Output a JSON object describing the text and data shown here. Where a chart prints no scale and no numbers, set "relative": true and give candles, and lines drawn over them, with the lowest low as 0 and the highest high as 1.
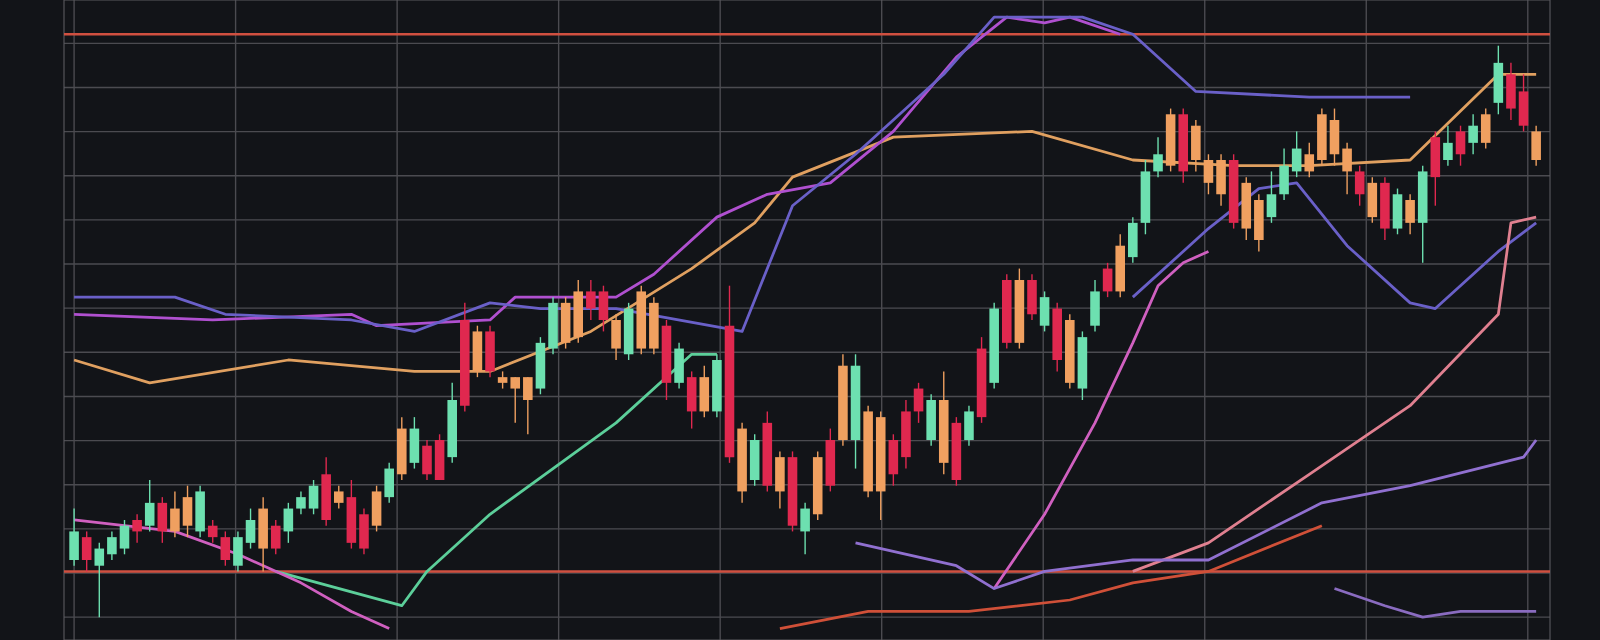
{
  "chart_data": {
    "type": "candlestick",
    "relative": true,
    "grid": true,
    "categories": [
      null,
      null,
      null,
      null,
      null,
      null,
      null,
      null,
      null,
      null,
      null,
      null,
      null,
      null,
      null,
      null,
      null,
      null,
      null,
      null,
      null,
      null,
      null,
      null,
      null,
      null,
      null,
      null,
      null,
      null,
      null,
      null,
      null,
      null,
      null,
      null,
      null,
      null,
      null,
      null,
      null,
      null,
      null,
      null,
      null,
      null,
      null,
      null,
      null,
      null,
      null,
      null,
      null,
      null,
      null,
      null,
      null,
      null,
      null,
      null,
      null,
      null,
      null,
      null,
      null,
      null,
      null,
      null,
      null,
      null,
      null,
      null,
      null,
      null,
      null,
      null,
      null,
      null,
      null,
      null,
      null,
      null,
      null,
      null,
      null,
      null,
      null,
      null,
      null,
      null,
      null,
      null,
      null,
      null,
      null,
      null,
      null,
      null,
      null,
      null,
      null,
      null,
      null,
      null,
      null,
      null,
      null,
      null,
      null,
      null,
      null,
      null,
      null,
      null,
      null,
      null,
      null
    ],
    "ohlc": [
      [
        0.1,
        0.19,
        0.09,
        0.15
      ],
      [
        0.14,
        0.15,
        0.08,
        0.1
      ],
      [
        0.09,
        0.13,
        0.0,
        0.12
      ],
      [
        0.11,
        0.15,
        0.1,
        0.14
      ],
      [
        0.12,
        0.17,
        0.11,
        0.16
      ],
      [
        0.17,
        0.18,
        0.13,
        0.15
      ],
      [
        0.16,
        0.24,
        0.15,
        0.2
      ],
      [
        0.2,
        0.21,
        0.13,
        0.15
      ],
      [
        0.15,
        0.22,
        0.14,
        0.19
      ],
      [
        0.16,
        0.23,
        0.14,
        0.21
      ],
      [
        0.15,
        0.23,
        0.14,
        0.22
      ],
      [
        0.16,
        0.17,
        0.13,
        0.14
      ],
      [
        0.14,
        0.15,
        0.09,
        0.1
      ],
      [
        0.09,
        0.15,
        0.08,
        0.14
      ],
      [
        0.13,
        0.19,
        0.12,
        0.17
      ],
      [
        0.12,
        0.21,
        0.08,
        0.19
      ],
      [
        0.16,
        0.17,
        0.11,
        0.12
      ],
      [
        0.15,
        0.2,
        0.13,
        0.19
      ],
      [
        0.19,
        0.22,
        0.18,
        0.21
      ],
      [
        0.19,
        0.24,
        0.18,
        0.23
      ],
      [
        0.25,
        0.28,
        0.16,
        0.17
      ],
      [
        0.2,
        0.23,
        0.19,
        0.22
      ],
      [
        0.21,
        0.24,
        0.12,
        0.13
      ],
      [
        0.18,
        0.19,
        0.11,
        0.12
      ],
      [
        0.16,
        0.23,
        0.15,
        0.22
      ],
      [
        0.21,
        0.27,
        0.2,
        0.26
      ],
      [
        0.25,
        0.35,
        0.24,
        0.33
      ],
      [
        0.27,
        0.35,
        0.26,
        0.33
      ],
      [
        0.3,
        0.31,
        0.24,
        0.25
      ],
      [
        0.31,
        0.32,
        0.24,
        0.24
      ],
      [
        0.28,
        0.41,
        0.27,
        0.38
      ],
      [
        0.52,
        0.55,
        0.36,
        0.37
      ],
      [
        0.43,
        0.51,
        0.42,
        0.5
      ],
      [
        0.5,
        0.51,
        0.42,
        0.43
      ],
      [
        0.41,
        0.43,
        0.4,
        0.42
      ],
      [
        0.4,
        0.42,
        0.34,
        0.42
      ],
      [
        0.38,
        0.42,
        0.32,
        0.42
      ],
      [
        0.4,
        0.49,
        0.39,
        0.48
      ],
      [
        0.47,
        0.56,
        0.46,
        0.55
      ],
      [
        0.48,
        0.56,
        0.47,
        0.55
      ],
      [
        0.49,
        0.59,
        0.48,
        0.57
      ],
      [
        0.57,
        0.59,
        0.52,
        0.54
      ],
      [
        0.57,
        0.58,
        0.5,
        0.52
      ],
      [
        0.47,
        0.53,
        0.45,
        0.52
      ],
      [
        0.46,
        0.55,
        0.45,
        0.54
      ],
      [
        0.47,
        0.58,
        0.46,
        0.57
      ],
      [
        0.47,
        0.56,
        0.46,
        0.55
      ],
      [
        0.51,
        0.52,
        0.38,
        0.41
      ],
      [
        0.41,
        0.48,
        0.4,
        0.47
      ],
      [
        0.42,
        0.43,
        0.33,
        0.36
      ],
      [
        0.36,
        0.44,
        0.35,
        0.42
      ],
      [
        0.36,
        0.46,
        0.35,
        0.45
      ],
      [
        0.51,
        0.58,
        0.27,
        0.28
      ],
      [
        0.22,
        0.34,
        0.2,
        0.33
      ],
      [
        0.24,
        0.32,
        0.23,
        0.31
      ],
      [
        0.34,
        0.36,
        0.22,
        0.23
      ],
      [
        0.22,
        0.29,
        0.19,
        0.28
      ],
      [
        0.28,
        0.29,
        0.15,
        0.16
      ],
      [
        0.15,
        0.2,
        0.11,
        0.19
      ],
      [
        0.18,
        0.29,
        0.17,
        0.28
      ],
      [
        0.31,
        0.33,
        0.22,
        0.23
      ],
      [
        0.31,
        0.46,
        0.3,
        0.44
      ],
      [
        0.31,
        0.46,
        0.26,
        0.44
      ],
      [
        0.36,
        0.37,
        0.21,
        0.22
      ],
      [
        0.35,
        0.36,
        0.17,
        0.22
      ],
      [
        0.31,
        0.32,
        0.23,
        0.25
      ],
      [
        0.36,
        0.38,
        0.26,
        0.28
      ],
      [
        0.4,
        0.41,
        0.34,
        0.36
      ],
      [
        0.31,
        0.39,
        0.3,
        0.38
      ],
      [
        0.38,
        0.43,
        0.25,
        0.27
      ],
      [
        0.34,
        0.35,
        0.23,
        0.24
      ],
      [
        0.31,
        0.37,
        0.3,
        0.36
      ],
      [
        0.47,
        0.49,
        0.34,
        0.35
      ],
      [
        0.41,
        0.55,
        0.4,
        0.54
      ],
      [
        0.59,
        0.6,
        0.47,
        0.48
      ],
      [
        0.48,
        0.61,
        0.47,
        0.59
      ],
      [
        0.59,
        0.6,
        0.52,
        0.53
      ],
      [
        0.51,
        0.57,
        0.5,
        0.56
      ],
      [
        0.54,
        0.55,
        0.43,
        0.45
      ],
      [
        0.41,
        0.53,
        0.4,
        0.52
      ],
      [
        0.4,
        0.5,
        0.38,
        0.49
      ],
      [
        0.51,
        0.59,
        0.5,
        0.57
      ],
      [
        0.61,
        0.62,
        0.56,
        0.57
      ],
      [
        0.57,
        0.67,
        0.56,
        0.65
      ],
      [
        0.63,
        0.7,
        0.62,
        0.69
      ],
      [
        0.69,
        0.8,
        0.67,
        0.78
      ],
      [
        0.78,
        0.84,
        0.77,
        0.81
      ],
      [
        0.79,
        0.89,
        0.78,
        0.88
      ],
      [
        0.88,
        0.89,
        0.76,
        0.78
      ],
      [
        0.8,
        0.87,
        0.78,
        0.86
      ],
      [
        0.8,
        0.81,
        0.74,
        0.76
      ],
      [
        0.8,
        0.81,
        0.72,
        0.74
      ],
      [
        0.8,
        0.81,
        0.68,
        0.69
      ],
      [
        0.76,
        0.77,
        0.66,
        0.68
      ],
      [
        0.73,
        0.74,
        0.64,
        0.66
      ],
      [
        0.7,
        0.78,
        0.69,
        0.74
      ],
      [
        0.74,
        0.82,
        0.73,
        0.79
      ],
      [
        0.78,
        0.85,
        0.77,
        0.82
      ],
      [
        0.81,
        0.83,
        0.77,
        0.78
      ],
      [
        0.8,
        0.89,
        0.79,
        0.88
      ],
      [
        0.81,
        0.89,
        0.79,
        0.87
      ],
      [
        0.82,
        0.83,
        0.74,
        0.78
      ],
      [
        0.78,
        0.79,
        0.72,
        0.74
      ],
      [
        0.76,
        0.77,
        0.69,
        0.7
      ],
      [
        0.76,
        0.77,
        0.66,
        0.68
      ],
      [
        0.68,
        0.75,
        0.67,
        0.74
      ],
      [
        0.73,
        0.74,
        0.67,
        0.69
      ],
      [
        0.69,
        0.79,
        0.62,
        0.78
      ],
      [
        0.84,
        0.85,
        0.72,
        0.77
      ],
      [
        0.8,
        0.86,
        0.79,
        0.83
      ],
      [
        0.85,
        0.86,
        0.79,
        0.81
      ],
      [
        0.83,
        0.88,
        0.81,
        0.86
      ],
      [
        0.83,
        0.89,
        0.82,
        0.88
      ],
      [
        0.9,
        1.0,
        0.88,
        0.97
      ],
      [
        0.95,
        0.97,
        0.87,
        0.89
      ],
      [
        0.92,
        0.95,
        0.85,
        0.86
      ],
      [
        0.85,
        0.86,
        0.79,
        0.8
      ]
    ],
    "colors": [
      "#6de0b0",
      "#e0284f",
      "#6de0b0",
      "#6de0b0",
      "#6de0b0",
      "#e0284f",
      "#6de0b0",
      "#e0284f",
      "#f0a060",
      "#f0a060",
      "#6de0b0",
      "#e0284f",
      "#e0284f",
      "#6de0b0",
      "#6de0b0",
      "#f0a060",
      "#e0284f",
      "#6de0b0",
      "#6de0b0",
      "#6de0b0",
      "#e0284f",
      "#f0a060",
      "#e0284f",
      "#e0284f",
      "#f0a060",
      "#6de0b0",
      "#f0a060",
      "#6de0b0",
      "#e0284f",
      "#e0284f",
      "#6de0b0",
      "#e0284f",
      "#f0a060",
      "#e0284f",
      "#f0a060",
      "#f0a060",
      "#f0a060",
      "#6de0b0",
      "#6de0b0",
      "#f0a060",
      "#f0a060",
      "#e0284f",
      "#e0284f",
      "#f0a060",
      "#6de0b0",
      "#f0a060",
      "#f0a060",
      "#e0284f",
      "#6de0b0",
      "#e0284f",
      "#f0a060",
      "#6de0b0",
      "#e0284f",
      "#f0a060",
      "#6de0b0",
      "#e0284f",
      "#f0a060",
      "#e0284f",
      "#6de0b0",
      "#f0a060",
      "#e0284f",
      "#f0a060",
      "#6de0b0",
      "#f0a060",
      "#f0a060",
      "#e0284f",
      "#e0284f",
      "#e0284f",
      "#6de0b0",
      "#f0a060",
      "#e0284f",
      "#6de0b0",
      "#e0284f",
      "#6de0b0",
      "#e0284f",
      "#f0a060",
      "#e0284f",
      "#6de0b0",
      "#e0284f",
      "#f0a060",
      "#6de0b0",
      "#6de0b0",
      "#e0284f",
      "#f0a060",
      "#6de0b0",
      "#6de0b0",
      "#6de0b0",
      "#f0a060",
      "#e0284f",
      "#f0a060",
      "#f0a060",
      "#f0a060",
      "#e0284f",
      "#f0a060",
      "#f0a060",
      "#6de0b0",
      "#6de0b0",
      "#6de0b0",
      "#f0a060",
      "#f0a060",
      "#f0a060",
      "#f0a060",
      "#e0284f",
      "#f0a060",
      "#e0284f",
      "#6de0b0",
      "#f0a060",
      "#6de0b0",
      "#e0284f",
      "#6de0b0",
      "#e0284f",
      "#6de0b0",
      "#f0a060",
      "#6de0b0",
      "#e0284f",
      "#e0284f",
      "#f0a060"
    ],
    "series": [
      {
        "type": "line",
        "color": "#e0a060",
        "values": [
          0.45,
          null,
          null,
          null,
          null,
          null,
          0.41,
          null,
          null,
          null,
          null,
          null,
          null,
          null,
          null,
          null,
          null,
          0.45,
          null,
          null,
          null,
          null,
          null,
          null,
          null,
          null,
          null,
          0.43,
          null,
          null,
          null,
          null,
          null,
          0.43,
          null,
          null,
          null,
          null,
          null,
          null,
          null,
          0.5,
          null,
          null,
          null,
          null,
          null,
          null,
          null,
          0.61,
          null,
          null,
          null,
          null,
          0.69,
          null,
          null,
          0.77,
          null,
          null,
          null,
          null,
          null,
          null,
          null,
          0.84,
          null,
          null,
          null,
          null,
          null,
          null,
          null,
          null,
          null,
          null,
          0.85,
          null,
          null,
          null,
          null,
          null,
          null,
          null,
          0.8,
          null,
          null,
          null,
          null,
          null,
          null,
          null,
          0.79,
          null,
          null,
          null,
          null,
          null,
          0.79,
          null,
          null,
          null,
          null,
          null,
          null,
          null,
          0.8,
          null,
          null,
          null,
          null,
          null,
          null,
          0.95,
          null,
          null,
          0.95
        ]
      },
      {
        "type": "line",
        "color": "#b050d0",
        "values": [
          0.53,
          null,
          null,
          null,
          null,
          null,
          null,
          null,
          null,
          null,
          null,
          0.52,
          null,
          null,
          null,
          null,
          null,
          null,
          null,
          null,
          null,
          null,
          0.53,
          null,
          0.51,
          null,
          null,
          null,
          null,
          null,
          null,
          null,
          null,
          0.52,
          null,
          0.56,
          null,
          null,
          null,
          null,
          null,
          null,
          null,
          0.56,
          null,
          null,
          0.6,
          null,
          null,
          null,
          null,
          0.7,
          null,
          null,
          null,
          0.74,
          null,
          null,
          null,
          null,
          0.76,
          null,
          null,
          null,
          null,
          0.85,
          null,
          null,
          null,
          null,
          0.98,
          null,
          null,
          null,
          1.05,
          null,
          null,
          1.04,
          null,
          1.05,
          null,
          null,
          null,
          1.02,
          null,
          null,
          null,
          null,
          null,
          null,
          null,
          null,
          null,
          null,
          null,
          null,
          null,
          null,
          null,
          null,
          null,
          null,
          null,
          null,
          null,
          null,
          null,
          null,
          null,
          null,
          null,
          null,
          null,
          null,
          null,
          null,
          null
        ]
      },
      {
        "type": "line",
        "color": "#6a60c8",
        "values": [
          0.56,
          null,
          null,
          null,
          null,
          null,
          null,
          null,
          0.56,
          null,
          null,
          null,
          0.53,
          null,
          null,
          null,
          null,
          null,
          null,
          null,
          null,
          null,
          0.52,
          null,
          null,
          null,
          null,
          0.5,
          null,
          null,
          null,
          null,
          null,
          0.55,
          null,
          null,
          null,
          0.54,
          null,
          null,
          null,
          null,
          null,
          0.54,
          null,
          null,
          null,
          null,
          null,
          null,
          null,
          null,
          null,
          0.5,
          null,
          null,
          null,
          0.72,
          null,
          null,
          null,
          null,
          0.81,
          null,
          null,
          null,
          null,
          null,
          null,
          0.95,
          null,
          null,
          null,
          1.05,
          null,
          null,
          null,
          1.05,
          null,
          null,
          1.05,
          null,
          null,
          null,
          1.02,
          null,
          null,
          null,
          null,
          0.92,
          null,
          null,
          null,
          null,
          null,
          null,
          null,
          null,
          0.91,
          null,
          null,
          null,
          null,
          null,
          null,
          null,
          0.91,
          null,
          null,
          null,
          null,
          null,
          null,
          null,
          null,
          null,
          null
        ]
      },
      {
        "type": "line",
        "color": "#6a60c8",
        "values": [
          null,
          null,
          null,
          null,
          null,
          null,
          null,
          null,
          null,
          null,
          null,
          null,
          null,
          null,
          null,
          null,
          null,
          null,
          null,
          null,
          null,
          null,
          null,
          null,
          null,
          null,
          null,
          null,
          null,
          null,
          null,
          null,
          null,
          null,
          null,
          null,
          null,
          null,
          null,
          null,
          null,
          null,
          null,
          null,
          null,
          null,
          null,
          null,
          null,
          null,
          null,
          null,
          null,
          null,
          null,
          null,
          null,
          null,
          null,
          null,
          null,
          null,
          null,
          null,
          null,
          null,
          null,
          null,
          null,
          null,
          null,
          null,
          null,
          null,
          null,
          null,
          null,
          null,
          null,
          null,
          null,
          null,
          null,
          null,
          0.56,
          null,
          null,
          null,
          null,
          null,
          0.68,
          null,
          null,
          null,
          0.75,
          null,
          null,
          0.76,
          null,
          null,
          null,
          0.65,
          null,
          null,
          null,
          null,
          0.55,
          null,
          0.54,
          null,
          null,
          null,
          null,
          0.64,
          null,
          null,
          0.69
        ]
      },
      {
        "type": "line",
        "color": "#5ccf9a",
        "values": [
          null,
          null,
          null,
          null,
          null,
          null,
          null,
          null,
          null,
          null,
          null,
          null,
          null,
          null,
          null,
          null,
          0.08,
          null,
          null,
          null,
          null,
          null,
          null,
          null,
          null,
          null,
          0.02,
          null,
          0.08,
          null,
          null,
          null,
          null,
          0.18,
          null,
          null,
          null,
          null,
          null,
          null,
          null,
          null,
          null,
          0.34,
          null,
          null,
          null,
          null,
          null,
          0.46,
          null,
          0.46,
          null,
          null,
          null,
          null,
          null,
          null,
          null,
          null,
          null,
          null,
          null,
          null,
          null,
          null,
          null,
          null,
          null,
          null,
          null,
          null,
          null,
          null,
          null,
          null,
          null,
          null,
          null,
          null,
          null,
          null,
          null,
          null,
          null,
          null,
          null,
          null,
          null,
          null,
          null,
          null,
          null,
          null,
          null,
          null,
          null,
          null,
          null,
          null,
          null,
          null,
          null,
          null,
          null,
          null,
          null,
          null,
          null,
          null,
          null,
          null,
          null,
          null,
          null,
          null,
          null
        ]
      },
      {
        "type": "line",
        "color": "#d060c0",
        "values": [
          0.17,
          null,
          null,
          null,
          null,
          null,
          null,
          null,
          0.15,
          null,
          null,
          null,
          null,
          0.11,
          null,
          null,
          null,
          null,
          0.06,
          null,
          null,
          null,
          0.01,
          null,
          null,
          -0.02,
          null,
          null,
          null,
          null,
          null,
          null,
          null,
          null,
          null,
          null,
          null,
          null,
          null,
          null,
          null,
          null,
          null,
          null,
          null,
          null,
          null,
          null,
          null,
          null,
          null,
          null,
          null,
          null,
          null,
          null,
          null,
          null,
          null,
          null,
          null,
          null,
          null,
          null,
          null,
          null,
          null,
          null,
          null,
          null,
          null,
          null,
          null,
          null,
          null,
          null,
          null,
          null,
          null,
          null,
          null,
          null,
          null,
          null,
          null,
          null,
          null,
          null,
          null,
          null,
          null,
          null,
          null,
          null,
          null,
          null,
          null,
          null,
          null,
          null,
          null,
          null,
          null,
          null,
          null,
          null,
          null,
          null,
          null,
          null,
          null,
          null,
          null,
          null,
          null,
          null,
          null
        ]
      },
      {
        "type": "line",
        "color": "#d060c0",
        "values": [
          null,
          null,
          null,
          null,
          null,
          null,
          null,
          null,
          null,
          null,
          null,
          null,
          null,
          null,
          null,
          null,
          null,
          null,
          null,
          null,
          null,
          null,
          null,
          null,
          null,
          null,
          null,
          null,
          null,
          null,
          null,
          null,
          null,
          null,
          null,
          null,
          null,
          null,
          null,
          null,
          null,
          null,
          null,
          null,
          null,
          null,
          null,
          null,
          null,
          null,
          null,
          null,
          null,
          null,
          null,
          null,
          null,
          null,
          null,
          null,
          null,
          null,
          null,
          null,
          null,
          null,
          null,
          null,
          null,
          null,
          null,
          null,
          null,
          0.05,
          null,
          null,
          null,
          0.18,
          null,
          null,
          null,
          0.34,
          null,
          null,
          0.48,
          null,
          0.58,
          null,
          0.62,
          null,
          0.64,
          null,
          null,
          null,
          null,
          null,
          null,
          null,
          null,
          null,
          null,
          null,
          null,
          null,
          null,
          null,
          null,
          null,
          null,
          null,
          null,
          null,
          null,
          null,
          null,
          null,
          null
        ]
      },
      {
        "type": "line",
        "color": "#e08090",
        "values": [
          null,
          null,
          null,
          null,
          null,
          null,
          null,
          null,
          null,
          null,
          null,
          null,
          null,
          null,
          null,
          null,
          null,
          null,
          null,
          null,
          null,
          null,
          null,
          null,
          null,
          null,
          null,
          null,
          null,
          null,
          null,
          null,
          null,
          null,
          null,
          null,
          null,
          null,
          null,
          null,
          null,
          null,
          null,
          null,
          null,
          null,
          null,
          null,
          null,
          null,
          null,
          null,
          null,
          null,
          null,
          null,
          null,
          null,
          null,
          null,
          null,
          null,
          null,
          null,
          null,
          null,
          null,
          null,
          null,
          null,
          null,
          null,
          null,
          null,
          null,
          null,
          null,
          null,
          null,
          null,
          null,
          null,
          null,
          null,
          0.08,
          null,
          null,
          null,
          null,
          null,
          0.13,
          null,
          null,
          null,
          null,
          null,
          null,
          null,
          0.25,
          null,
          null,
          null,
          null,
          null,
          null,
          null,
          0.37,
          null,
          null,
          null,
          null,
          null,
          null,
          0.53,
          0.69,
          null,
          0.7
        ]
      },
      {
        "type": "line",
        "color": "#d05038",
        "values": [
          null,
          null,
          null,
          null,
          null,
          null,
          null,
          null,
          null,
          null,
          null,
          null,
          null,
          null,
          null,
          null,
          null,
          null,
          null,
          null,
          null,
          null,
          null,
          null,
          null,
          null,
          null,
          null,
          null,
          null,
          null,
          null,
          null,
          null,
          null,
          null,
          null,
          null,
          null,
          null,
          null,
          null,
          null,
          null,
          null,
          null,
          null,
          null,
          null,
          null,
          null,
          null,
          null,
          null,
          null,
          null,
          -0.02,
          null,
          null,
          null,
          null,
          null,
          null,
          0.01,
          null,
          null,
          null,
          null,
          null,
          null,
          null,
          0.01,
          null,
          null,
          null,
          null,
          null,
          null,
          null,
          0.03,
          null,
          null,
          null,
          null,
          0.06,
          null,
          null,
          null,
          null,
          null,
          0.08,
          null,
          null,
          null,
          null,
          null,
          null,
          null,
          null,
          0.16,
          null,
          null,
          null,
          null,
          null,
          null,
          null,
          null,
          null,
          null,
          null,
          null,
          null,
          null,
          null,
          null,
          null
        ]
      },
      {
        "type": "line",
        "color": "#9070d0",
        "values": [
          null,
          null,
          null,
          null,
          null,
          null,
          null,
          null,
          null,
          null,
          null,
          null,
          null,
          null,
          null,
          null,
          null,
          null,
          null,
          null,
          null,
          null,
          null,
          null,
          null,
          null,
          null,
          null,
          null,
          null,
          null,
          null,
          null,
          null,
          null,
          null,
          null,
          null,
          null,
          null,
          null,
          null,
          null,
          null,
          null,
          null,
          null,
          null,
          null,
          null,
          null,
          null,
          null,
          null,
          null,
          null,
          null,
          null,
          null,
          null,
          null,
          null,
          0.13,
          null,
          null,
          null,
          null,
          null,
          null,
          null,
          0.09,
          null,
          null,
          0.05,
          null,
          null,
          null,
          0.08,
          null,
          null,
          null,
          null,
          null,
          null,
          0.1,
          null,
          null,
          null,
          null,
          null,
          0.1,
          null,
          null,
          null,
          null,
          null,
          null,
          null,
          null,
          0.2,
          null,
          null,
          null,
          null,
          null,
          null,
          0.23,
          null,
          null,
          null,
          null,
          null,
          null,
          null,
          null,
          0.28,
          0.31
        ]
      },
      {
        "type": "line",
        "color": "#8a6cc0",
        "values": [
          null,
          null,
          null,
          null,
          null,
          null,
          null,
          null,
          null,
          null,
          null,
          null,
          null,
          null,
          null,
          null,
          null,
          null,
          null,
          null,
          null,
          null,
          null,
          null,
          null,
          null,
          null,
          null,
          null,
          null,
          null,
          null,
          null,
          null,
          null,
          null,
          null,
          null,
          null,
          null,
          null,
          null,
          null,
          null,
          null,
          null,
          null,
          null,
          null,
          null,
          null,
          null,
          null,
          null,
          null,
          null,
          null,
          null,
          null,
          null,
          null,
          null,
          null,
          null,
          null,
          null,
          null,
          null,
          null,
          null,
          null,
          null,
          null,
          null,
          null,
          null,
          null,
          null,
          null,
          null,
          null,
          null,
          null,
          null,
          null,
          null,
          null,
          null,
          null,
          null,
          null,
          null,
          null,
          null,
          null,
          null,
          null,
          null,
          null,
          null,
          0.05,
          null,
          null,
          null,
          0.02,
          null,
          null,
          0.0,
          null,
          null,
          0.01,
          null,
          null,
          null,
          null,
          0.01,
          0.01
        ]
      }
    ],
    "ref_lines": [
      {
        "axis": "y",
        "value": 1.02,
        "color": "#d05040"
      },
      {
        "axis": "y",
        "value": 0.08,
        "color": "#d05040"
      }
    ]
  }
}
